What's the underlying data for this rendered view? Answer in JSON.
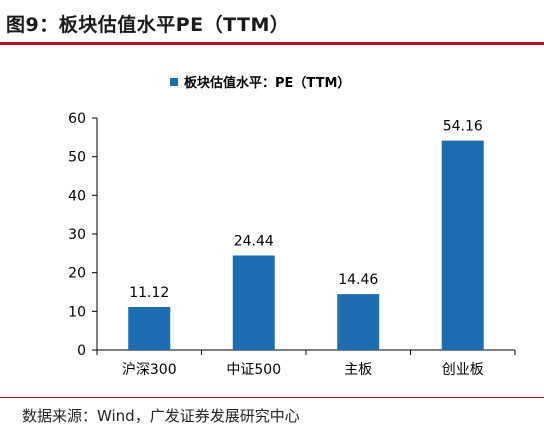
{
  "figure": {
    "title": "图9：板块估值水平PE（TTM）",
    "source": "数据来源：Wind，广发证券发展研究中心"
  },
  "colors": {
    "bar": "#1f6db1",
    "rule": "#b0182a",
    "axis": "#000000",
    "text": "#000000"
  },
  "chart_data": {
    "type": "bar",
    "title": "",
    "categories": [
      "沪深300",
      "中证500",
      "主板",
      "创业板"
    ],
    "series": [
      {
        "name": "板块估值水平：PE（TTM）",
        "values": [
          11.12,
          24.44,
          14.46,
          54.16
        ]
      }
    ],
    "data_labels": [
      "11.12",
      "24.44",
      "14.46",
      "54.16"
    ],
    "xlabel": "",
    "ylabel": "",
    "ylim": [
      0,
      60
    ],
    "yticks": [
      0,
      10,
      20,
      30,
      40,
      50,
      60
    ],
    "grid": false,
    "legend_position": "top-center"
  }
}
